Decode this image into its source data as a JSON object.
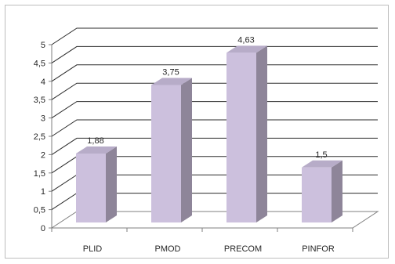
{
  "chart_data": {
    "type": "bar",
    "style": "3d-column",
    "categories": [
      "PLID",
      "PMOD",
      "PRECOM",
      "PINFOR"
    ],
    "values": [
      1.88,
      3.75,
      4.63,
      1.5
    ],
    "value_labels": [
      "1,88",
      "3,75",
      "4,63",
      "1,5"
    ],
    "ylim": [
      0,
      5
    ],
    "y_ticks": [
      "0",
      "0,5",
      "1",
      "1,5",
      "2",
      "2,5",
      "3",
      "3,5",
      "4",
      "4,5",
      "5"
    ],
    "grid": true,
    "legend": "none",
    "title": "",
    "xlabel": "",
    "ylabel": "",
    "colors": {
      "bar_front": "#ccc0dd",
      "bar_side": "#8e8599",
      "bar_top": "#b7acc8",
      "gridline": "#2b2b2b",
      "axis": "#7f7f7f"
    }
  }
}
